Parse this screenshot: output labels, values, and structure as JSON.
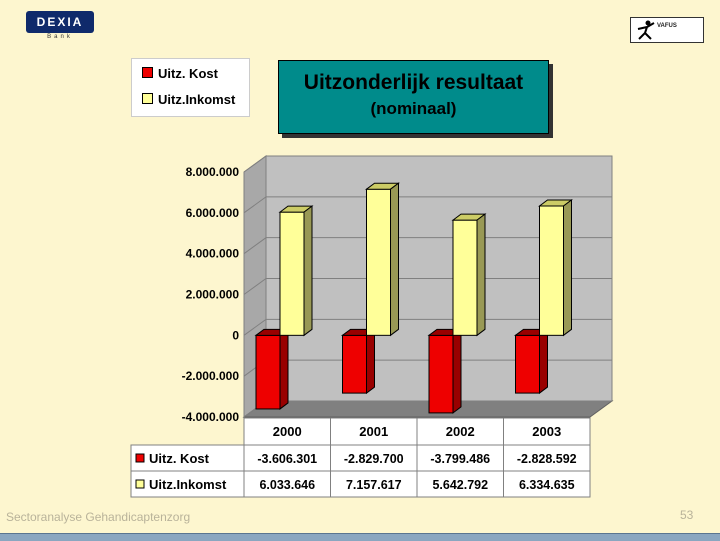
{
  "logos": {
    "dexia": "DEXIA",
    "dexia_sub": "Bank",
    "vafus": "VAFUS"
  },
  "title": "Uitzonderlijk resultaat",
  "subtitle": "(nominaal)",
  "footer": "Sectoranalyse Gehandicaptenzorg",
  "page_number": "53",
  "colors": {
    "kost": "#ee0000",
    "inkomst": "#ffff99",
    "background": "#fdf6cf",
    "title_box": "#008b8b"
  },
  "chart_data": {
    "type": "bar",
    "categories": [
      "2000",
      "2001",
      "2002",
      "2003"
    ],
    "series": [
      {
        "name": "Uitz. Kost",
        "values": [
          -3606301,
          -2829700,
          -3799486,
          -2828592
        ],
        "labels": [
          "-3.606.301",
          "-2.829.700",
          "-3.799.486",
          "-2.828.592"
        ]
      },
      {
        "name": "Uitz.Inkomst",
        "values": [
          6033646,
          7157617,
          5642792,
          6334635
        ],
        "labels": [
          "6.033.646",
          "7.157.617",
          "5.642.792",
          "6.334.635"
        ]
      }
    ],
    "legend": [
      "Uitz. Kost",
      "Uitz.Inkomst"
    ],
    "yticks": [
      "8.000.000",
      "6.000.000",
      "4.000.000",
      "2.000.000",
      "0",
      "-2.000.000",
      "-4.000.000"
    ],
    "ytick_values": [
      8000000,
      6000000,
      4000000,
      2000000,
      0,
      -2000000,
      -4000000
    ],
    "ylim": [
      -4000000,
      8000000
    ],
    "grid": true,
    "data_table": true
  }
}
